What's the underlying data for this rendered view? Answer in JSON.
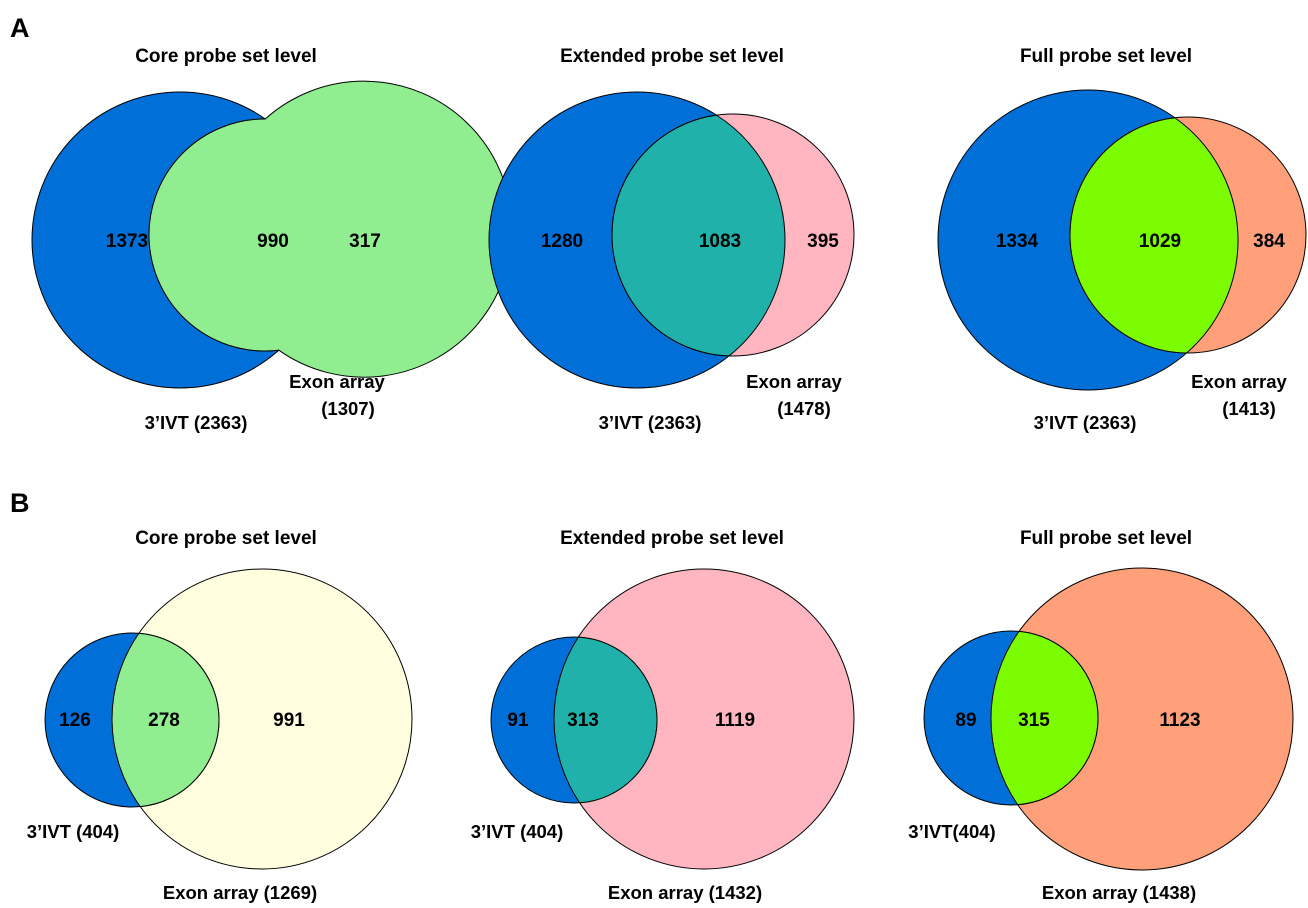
{
  "panels": [
    {
      "label": "A",
      "diagrams": [
        {
          "title": "Core probe set level",
          "left_set": {
            "label": "3’IVT (2363)",
            "only_count": "1373",
            "color": "#0070d8"
          },
          "right_set": {
            "label_line1": "Exon array",
            "label_line2": "(1307)",
            "only_count": "317",
            "color": "#ffffe0"
          },
          "overlap": {
            "count": "990",
            "color": "#90ee90"
          }
        },
        {
          "title": "Extended probe set level",
          "left_set": {
            "label": "3’IVT (2363)",
            "only_count": "1280",
            "color": "#0070d8"
          },
          "right_set": {
            "label_line1": "Exon array",
            "label_line2": "(1478)",
            "only_count": "395",
            "color": "#ffb6c1"
          },
          "overlap": {
            "count": "1083",
            "color": "#20b2aa"
          }
        },
        {
          "title": "Full probe set level",
          "left_set": {
            "label": "3’IVT (2363)",
            "only_count": "1334",
            "color": "#0070d8"
          },
          "right_set": {
            "label_line1": "Exon array",
            "label_line2": "(1413)",
            "only_count": "384",
            "color": "#ffa07a"
          },
          "overlap": {
            "count": "1029",
            "color": "#7cfc00"
          }
        }
      ]
    },
    {
      "label": "B",
      "diagrams": [
        {
          "title": "Core probe set level",
          "left_set": {
            "label": "3’IVT (404)",
            "only_count": "126",
            "color": "#0070d8"
          },
          "right_set": {
            "label": "Exon array (1269)",
            "only_count": "991",
            "color": "#ffffe0"
          },
          "overlap": {
            "count": "278",
            "color": "#90ee90"
          }
        },
        {
          "title": "Extended probe set level",
          "left_set": {
            "label": "3’IVT (404)",
            "only_count": "91",
            "color": "#0070d8"
          },
          "right_set": {
            "label": "Exon array (1432)",
            "only_count": "1119",
            "color": "#ffb6c1"
          },
          "overlap": {
            "count": "313",
            "color": "#20b2aa"
          }
        },
        {
          "title": "Full probe set level",
          "left_set": {
            "label": "3’IVT(404)",
            "only_count": "89",
            "color": "#0070d8"
          },
          "right_set": {
            "label": "Exon array (1438)",
            "only_count": "1123",
            "color": "#ffa07a"
          },
          "overlap": {
            "count": "315",
            "color": "#7cfc00"
          }
        }
      ]
    }
  ]
}
